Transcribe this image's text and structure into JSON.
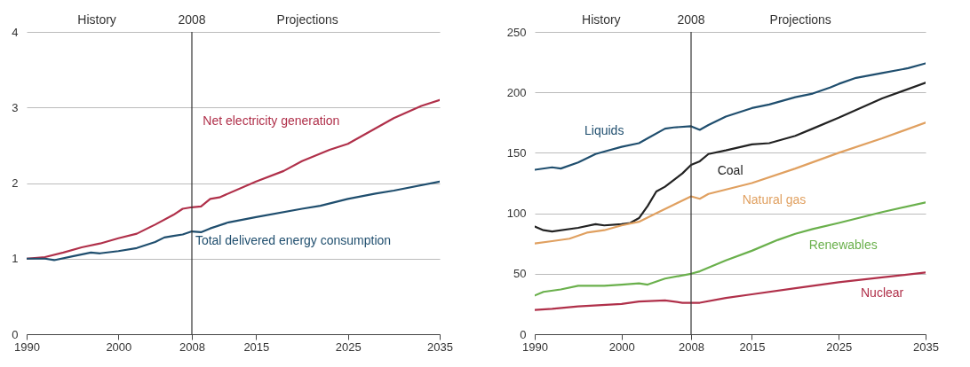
{
  "chart_data": [
    {
      "type": "line",
      "xlim": [
        1990,
        2035
      ],
      "xticks": [
        1990,
        2000,
        2008,
        2015,
        2025,
        2035
      ],
      "ylim": [
        0,
        4
      ],
      "yticks": [
        0,
        1,
        2,
        3,
        4
      ],
      "grid": "y",
      "ref_lines": [
        {
          "axis": "x",
          "value": 2008,
          "label": "2008",
          "color": "#333333"
        }
      ],
      "annotations": [
        "History",
        "Projections"
      ],
      "series": [
        {
          "name": "Net electricity generation",
          "color": "#b0304a",
          "x": [
            1990,
            1992,
            1994,
            1996,
            1998,
            2000,
            2002,
            2004,
            2006,
            2007,
            2008,
            2009,
            2010,
            2011,
            2015,
            2018,
            2020,
            2023,
            2025,
            2030,
            2033,
            2035
          ],
          "values": [
            1.0,
            1.02,
            1.08,
            1.15,
            1.2,
            1.27,
            1.33,
            1.45,
            1.58,
            1.66,
            1.68,
            1.69,
            1.79,
            1.81,
            2.02,
            2.16,
            2.29,
            2.44,
            2.52,
            2.86,
            3.02,
            3.1
          ]
        },
        {
          "name": "Total delivered energy consumption",
          "color": "#1f4e6e",
          "x": [
            1990,
            1992,
            1993,
            1995,
            1997,
            1998,
            2000,
            2002,
            2004,
            2005,
            2006,
            2007,
            2008,
            2009,
            2010,
            2012,
            2015,
            2020,
            2022,
            2025,
            2028,
            2030,
            2035
          ],
          "values": [
            1.0,
            1.0,
            0.98,
            1.03,
            1.08,
            1.07,
            1.1,
            1.14,
            1.22,
            1.28,
            1.3,
            1.32,
            1.36,
            1.35,
            1.4,
            1.48,
            1.55,
            1.66,
            1.7,
            1.79,
            1.86,
            1.9,
            2.02
          ]
        }
      ]
    },
    {
      "type": "line",
      "xlim": [
        1990,
        2035
      ],
      "xticks": [
        1990,
        2000,
        2008,
        2015,
        2025,
        2035
      ],
      "ylim": [
        0,
        250
      ],
      "yticks": [
        0,
        50,
        100,
        150,
        200,
        250
      ],
      "grid": "y",
      "ref_lines": [
        {
          "axis": "x",
          "value": 2008,
          "label": "2008",
          "color": "#333333"
        }
      ],
      "annotations": [
        "History",
        "Projections"
      ],
      "series": [
        {
          "name": "Liquids",
          "color": "#1f4e6e",
          "x": [
            1990,
            1992,
            1993,
            1995,
            1997,
            1998,
            2000,
            2002,
            2003,
            2005,
            2006,
            2008,
            2009,
            2010,
            2012,
            2015,
            2017,
            2020,
            2022,
            2024,
            2025,
            2027,
            2030,
            2033,
            2035
          ],
          "values": [
            136,
            138,
            137,
            142,
            149,
            151,
            155,
            158,
            162,
            170,
            171,
            172,
            169,
            173,
            180,
            187,
            190,
            196,
            199,
            204,
            207,
            212,
            216,
            220,
            224
          ]
        },
        {
          "name": "Coal",
          "color": "#222222",
          "x": [
            1990,
            1991,
            1992,
            1995,
            1997,
            1998,
            2000,
            2001,
            2002,
            2003,
            2004,
            2005,
            2007,
            2008,
            2009,
            2010,
            2012,
            2015,
            2017,
            2020,
            2022,
            2025,
            2030,
            2035
          ],
          "values": [
            89,
            86,
            85,
            88,
            91,
            90,
            91,
            92,
            96,
            106,
            118,
            122,
            133,
            140,
            143,
            149,
            152,
            157,
            158,
            164,
            170,
            179,
            195,
            208
          ]
        },
        {
          "name": "Natural gas",
          "color": "#e0a060",
          "x": [
            1990,
            1992,
            1994,
            1996,
            1998,
            2000,
            2002,
            2004,
            2006,
            2008,
            2009,
            2010,
            2015,
            2020,
            2025,
            2030,
            2035
          ],
          "values": [
            75,
            77,
            79,
            84,
            86,
            90,
            93,
            100,
            107,
            114,
            112,
            116,
            125,
            137,
            150,
            162,
            175
          ]
        },
        {
          "name": "Renewables",
          "color": "#6ab04c",
          "x": [
            1990,
            1991,
            1993,
            1995,
            1998,
            2000,
            2002,
            2003,
            2005,
            2008,
            2009,
            2012,
            2015,
            2018,
            2020,
            2022,
            2025,
            2030,
            2035
          ],
          "values": [
            32,
            35,
            37,
            40,
            40,
            41,
            42,
            41,
            46,
            50,
            52,
            61,
            69,
            78,
            83,
            87,
            92,
            101,
            109
          ]
        },
        {
          "name": "Nuclear",
          "color": "#b0304a",
          "x": [
            1990,
            1992,
            1995,
            2000,
            2002,
            2005,
            2007,
            2009,
            2012,
            2015,
            2020,
            2025,
            2030,
            2035
          ],
          "values": [
            20,
            21,
            23,
            25,
            27,
            28,
            26,
            26,
            30,
            33,
            38,
            43,
            47,
            51
          ]
        }
      ]
    }
  ]
}
